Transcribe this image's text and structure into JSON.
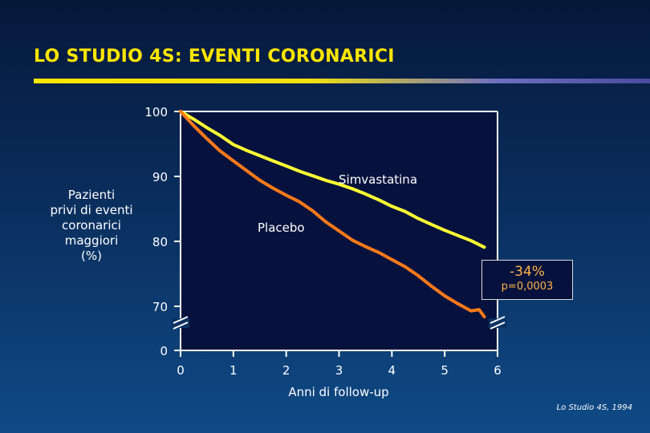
{
  "slide": {
    "title": "LO STUDIO 4S: EVENTI CORONARICI",
    "source": "Lo Studio 4S, 1994"
  },
  "chart_data": {
    "type": "line",
    "title": "",
    "xlabel": "Anni di follow-up",
    "ylabel_lines": [
      "Pazienti",
      "privi di eventi",
      "coronarici",
      "maggiori",
      "(%)"
    ],
    "xlim": [
      0,
      6
    ],
    "ylim": [
      68,
      100
    ],
    "y_axis_break": true,
    "x_ticks": [
      0,
      1,
      2,
      3,
      4,
      5,
      6
    ],
    "y_ticks": [
      100,
      90,
      80,
      70
    ],
    "y_tick_zero": "0",
    "grid": false,
    "series": [
      {
        "name": "Simvastatina",
        "color": "#ffff33",
        "x": [
          0,
          0.25,
          0.5,
          0.75,
          1.0,
          1.25,
          1.5,
          1.75,
          2.0,
          2.25,
          2.5,
          2.75,
          3.0,
          3.25,
          3.5,
          3.75,
          4.0,
          4.25,
          4.5,
          4.75,
          5.0,
          5.25,
          5.5,
          5.75
        ],
        "values": [
          100,
          98.8,
          97.5,
          96.3,
          94.9,
          94.0,
          93.2,
          92.4,
          91.6,
          90.8,
          90.1,
          89.4,
          88.8,
          88.1,
          87.3,
          86.4,
          85.4,
          84.6,
          83.5,
          82.6,
          81.7,
          80.9,
          80.1,
          79.1
        ]
      },
      {
        "name": "Placebo",
        "color": "#ff7a1a",
        "x": [
          0,
          0.25,
          0.5,
          0.75,
          1.0,
          1.25,
          1.5,
          1.75,
          2.0,
          2.25,
          2.5,
          2.75,
          3.0,
          3.25,
          3.5,
          3.75,
          4.0,
          4.25,
          4.5,
          4.75,
          5.0,
          5.25,
          5.5,
          5.65,
          5.75
        ],
        "values": [
          100,
          97.8,
          95.8,
          93.9,
          92.4,
          90.9,
          89.4,
          88.2,
          87.1,
          86.1,
          84.7,
          83.0,
          81.6,
          80.2,
          79.2,
          78.3,
          77.2,
          76.1,
          74.7,
          73.1,
          71.6,
          70.4,
          69.3,
          69.5,
          68.4
        ]
      }
    ],
    "series_labels": {
      "simvastatina": "Simvastatina",
      "placebo": "Placebo"
    },
    "annotation": {
      "reduction": "-34%",
      "p_value": "p=0,0003"
    }
  }
}
